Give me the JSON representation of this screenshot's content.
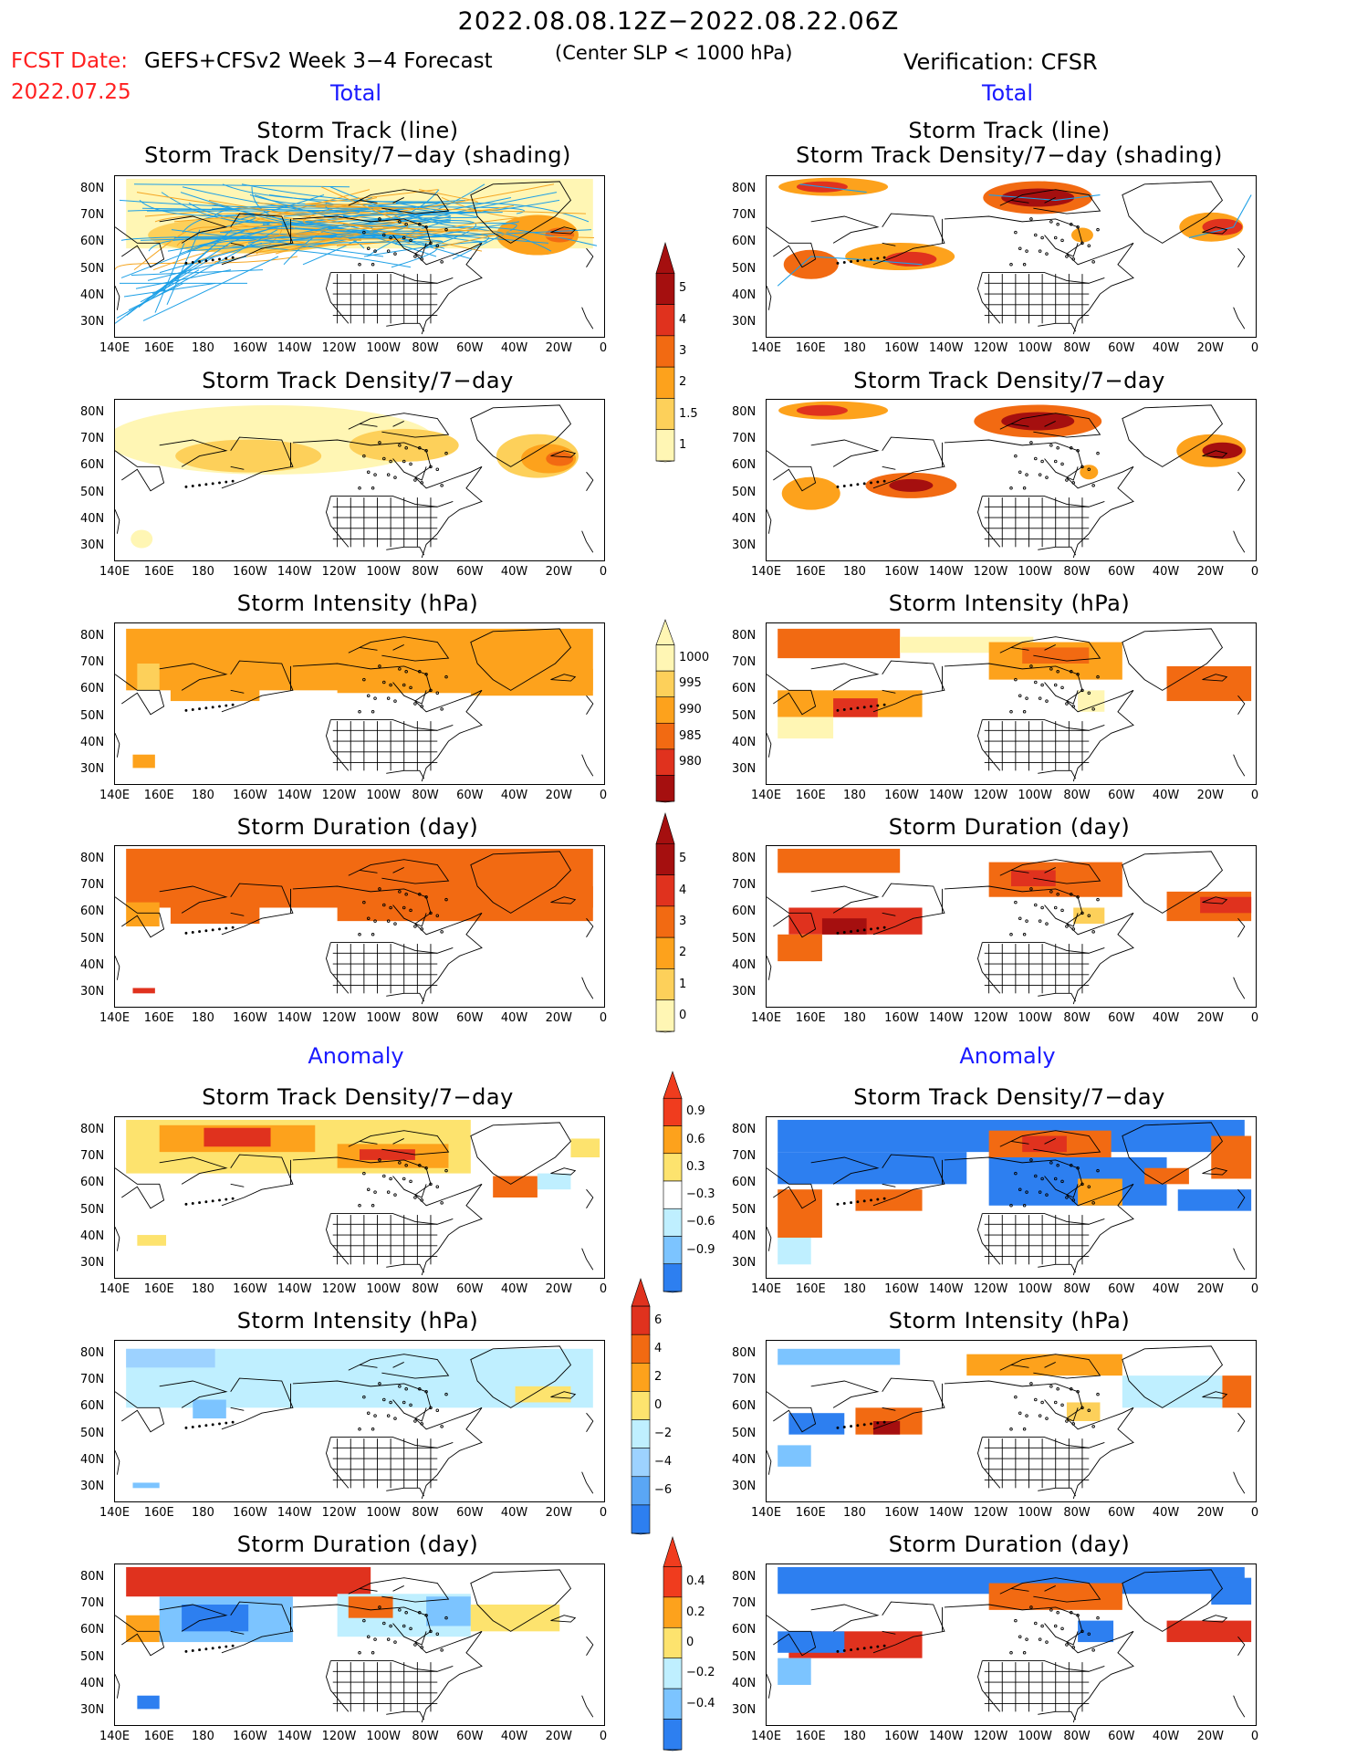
{
  "header": {
    "main_title": "2022.08.08.12Z−2022.08.22.06Z",
    "fcst_date_label": "FCST Date:",
    "fcst_date_value": "2022.07.25",
    "model_label": "GEFS+CFSv2 Week 3−4 Forecast",
    "sub_title": "(Center SLP < 1000 hPa)",
    "verification_label": "Verification: CFSR"
  },
  "sections": {
    "total": "Total",
    "anomaly": "Anomaly"
  },
  "panel_titles": {
    "track_line": "Storm Track (line)",
    "track_density_shading": "Storm Track Density/7−day (shading)",
    "track_density": "Storm Track Density/7−day",
    "intensity": "Storm Intensity (hPa)",
    "duration": "Storm Duration (day)"
  },
  "axis": {
    "lat_ticks": [
      "80N",
      "70N",
      "60N",
      "50N",
      "40N",
      "30N"
    ],
    "lon_ticks": [
      "140E",
      "160E",
      "180",
      "160W",
      "140W",
      "120W",
      "100W",
      "80W",
      "60W",
      "40W",
      "20W",
      "0"
    ]
  },
  "colorbars": {
    "density_total": {
      "labels": [
        "5",
        "4",
        "3",
        "2",
        "1.5",
        "1"
      ],
      "colors": [
        "#a50f0f",
        "#e0321e",
        "#f26a12",
        "#fda21c",
        "#fdd05a",
        "#fff6b4"
      ]
    },
    "intensity_total": {
      "labels": [
        "1000",
        "995",
        "990",
        "985",
        "980"
      ],
      "colors": [
        "#fff6b4",
        "#fdd05a",
        "#fda21c",
        "#f26a12",
        "#e0321e",
        "#a50f0f"
      ]
    },
    "duration_total": {
      "labels": [
        "5",
        "4",
        "3",
        "2",
        "1",
        "0"
      ],
      "colors": [
        "#a50f0f",
        "#e0321e",
        "#f26a12",
        "#fda21c",
        "#fdd05a",
        "#fff6b4"
      ]
    },
    "density_anom": {
      "labels": [
        "0.9",
        "0.6",
        "0.3",
        "−0.3",
        "−0.6",
        "−0.9"
      ],
      "colors": [
        "#f03c1e",
        "#fda21c",
        "#fde36e",
        "#ffffff",
        "#bfefff",
        "#7cc4ff",
        "#2d7ff0"
      ]
    },
    "intensity_anom": {
      "labels": [
        "6",
        "4",
        "2",
        "0",
        "−2",
        "−4",
        "−6"
      ],
      "colors": [
        "#e0321e",
        "#f26a12",
        "#fda21c",
        "#fde36e",
        "#bfefff",
        "#9dd2ff",
        "#5aa6f5",
        "#2d7ff0"
      ]
    },
    "duration_anom": {
      "labels": [
        "0.4",
        "0.2",
        "0",
        "−0.2",
        "−0.4"
      ],
      "colors": [
        "#f03c1e",
        "#fda21c",
        "#fde36e",
        "#bfefff",
        "#7cc4ff",
        "#2d7ff0"
      ]
    }
  }
}
